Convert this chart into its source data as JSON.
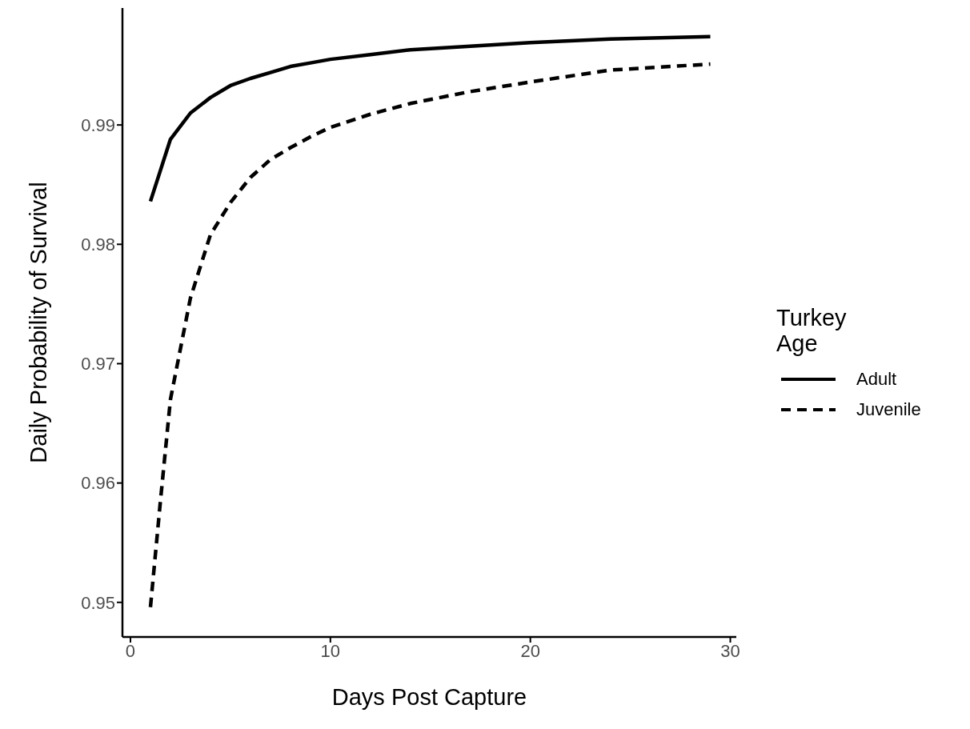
{
  "chart_data": {
    "type": "line",
    "xlabel": "Days Post Capture",
    "ylabel": "Daily Probability of Survival",
    "legend_title": "Turkey Age",
    "x": [
      1,
      1.5,
      2,
      3,
      4,
      5,
      6,
      7,
      8,
      9,
      10,
      12,
      14,
      17,
      20,
      24,
      29
    ],
    "series": [
      {
        "name": "Adult",
        "color": "#000000",
        "line_style": "solid",
        "values": [
          0.9836,
          0.9862,
          0.9888,
          0.991,
          0.9923,
          0.9933,
          0.9939,
          0.9944,
          0.9949,
          0.9952,
          0.9955,
          0.9959,
          0.9963,
          0.9966,
          0.9969,
          0.9972,
          0.9974
        ]
      },
      {
        "name": "Juvenile",
        "color": "#000000",
        "line_style": "dashed",
        "values": [
          0.9496,
          0.9585,
          0.967,
          0.9755,
          0.9808,
          0.9835,
          0.9856,
          0.9871,
          0.9881,
          0.989,
          0.9898,
          0.9909,
          0.9918,
          0.9928,
          0.9936,
          0.9946,
          0.9951
        ]
      }
    ],
    "xlim": [
      -0.4,
      30.3
    ],
    "xticks": [
      0,
      10,
      20,
      30
    ],
    "ylim": [
      0.9471,
      0.9998
    ],
    "yticks": [
      0.95,
      0.96,
      0.97,
      0.98,
      0.99
    ],
    "legend": "right"
  }
}
